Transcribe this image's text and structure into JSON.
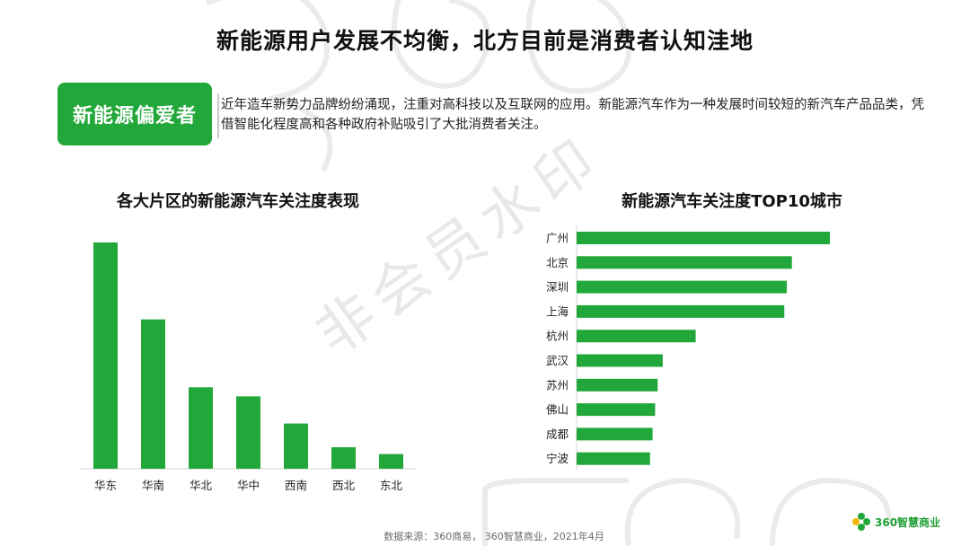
{
  "title": "新能源用户发展不均衡，北方目前是消费者认知洼地",
  "badge": "新能源偏爱者",
  "intro": "近年造车新势力品牌纷纷涌现，注重对高科技以及互联网的应用。新能源汽车作为一种发展时间较短的新汽车产品品类，凭借智能化程度高和各种政府补贴吸引了大批消费者关注。",
  "watermark": "非会员水印",
  "source": "数据来源：360商易， 360智慧商业，2021年4月",
  "logo_text": "360智慧商业",
  "colors": {
    "accent": "#22a83a",
    "logo_yellow": "#f2b705"
  },
  "icons": {
    "logo": "flower-logo-icon"
  },
  "chart_data": [
    {
      "type": "bar",
      "title": "各大片区的新能源汽车关注度表现",
      "categories": [
        "华东",
        "华南",
        "华北",
        "华中",
        "西南",
        "西北",
        "东北"
      ],
      "values": [
        100,
        66,
        36,
        32,
        20,
        9.5,
        6.5
      ],
      "ylim": [
        0,
        100
      ]
    },
    {
      "type": "bar",
      "orientation": "horizontal",
      "title": "新能源汽车关注度TOP10城市",
      "categories": [
        "广州",
        "北京",
        "深圳",
        "上海",
        "杭州",
        "武汉",
        "苏州",
        "佛山",
        "成都",
        "宁波"
      ],
      "values": [
        100,
        85,
        83,
        82,
        47,
        34,
        32,
        31,
        30,
        29
      ],
      "xlim": [
        0,
        100
      ]
    }
  ]
}
